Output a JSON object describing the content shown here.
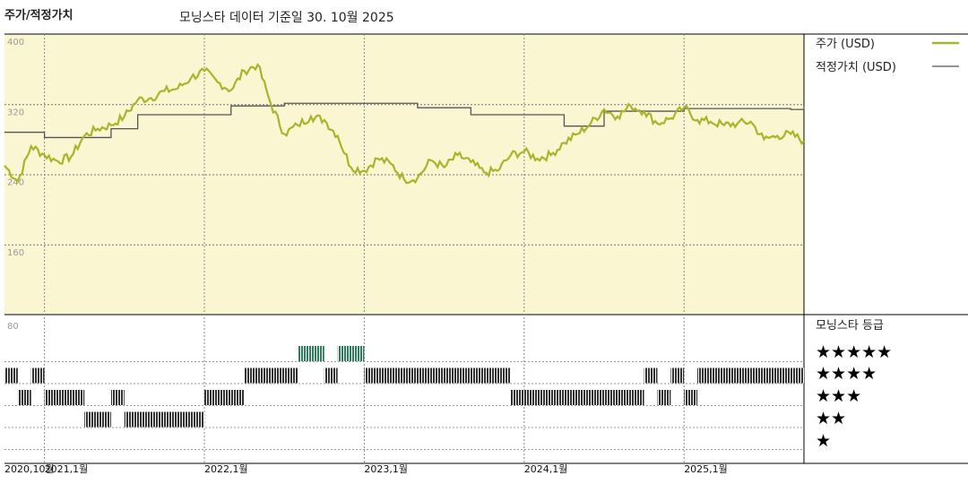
{
  "header": {
    "title": "주가/적정가치",
    "subtitle": "모닝스타 데이터 기준일 30. 10월 2025"
  },
  "legend": {
    "price_label": "주가 (USD)",
    "fair_value_label": "적정가치 (USD)",
    "rating_title": "모닝스타 등급",
    "stars": [
      "★★★★★",
      "★★★★",
      "★★★",
      "★★",
      "★"
    ]
  },
  "colors": {
    "price_line": "#a8b52a",
    "fair_value_line": "#555555",
    "upper_panel_bg": "#faf6d2",
    "rating_bar": "#333333",
    "rating_bar_five": "#2e7d5b"
  },
  "chart_data": [
    {
      "type": "line",
      "title": "주가/적정가치",
      "ylim": [
        80,
        400
      ],
      "yticks": [
        400,
        320,
        240,
        160
      ],
      "x_ticks": [
        "2020,10월",
        "2021,1월",
        "2022,1월",
        "2023,1월",
        "2024,1월",
        "2025,1월"
      ],
      "x_range": [
        "2020-10",
        "2025-10"
      ],
      "series": [
        {
          "name": "주가 (USD)",
          "points": [
            [
              "2020-10",
              250
            ],
            [
              "2020-11",
              232
            ],
            [
              "2020-12",
              272
            ],
            [
              "2021-01",
              262
            ],
            [
              "2021-02",
              255
            ],
            [
              "2021-03",
              260
            ],
            [
              "2021-04",
              284
            ],
            [
              "2021-05",
              292
            ],
            [
              "2021-06",
              296
            ],
            [
              "2021-07",
              306
            ],
            [
              "2021-08",
              325
            ],
            [
              "2021-09",
              327
            ],
            [
              "2021-10",
              335
            ],
            [
              "2021-11",
              338
            ],
            [
              "2021-12",
              350
            ],
            [
              "2022-01",
              358
            ],
            [
              "2022-02",
              345
            ],
            [
              "2022-03",
              336
            ],
            [
              "2022-04",
              358
            ],
            [
              "2022-05",
              365
            ],
            [
              "2022-06",
              320
            ],
            [
              "2022-07",
              286
            ],
            [
              "2022-08",
              296
            ],
            [
              "2022-09",
              306
            ],
            [
              "2022-10",
              302
            ],
            [
              "2022-11",
              284
            ],
            [
              "2022-12",
              248
            ],
            [
              "2023-01",
              244
            ],
            [
              "2023-02",
              258
            ],
            [
              "2023-03",
              252
            ],
            [
              "2023-04",
              234
            ],
            [
              "2023-05",
              236
            ],
            [
              "2023-06",
              256
            ],
            [
              "2023-07",
              248
            ],
            [
              "2023-08",
              262
            ],
            [
              "2023-09",
              254
            ],
            [
              "2023-10",
              242
            ],
            [
              "2023-11",
              244
            ],
            [
              "2023-12",
              262
            ],
            [
              "2024-01",
              266
            ],
            [
              "2024-02",
              258
            ],
            [
              "2024-03",
              262
            ],
            [
              "2024-04",
              276
            ],
            [
              "2024-05",
              286
            ],
            [
              "2024-06",
              298
            ],
            [
              "2024-07",
              314
            ],
            [
              "2024-08",
              306
            ],
            [
              "2024-09",
              318
            ],
            [
              "2024-10",
              312
            ],
            [
              "2024-11",
              298
            ],
            [
              "2024-12",
              304
            ],
            [
              "2025-01",
              316
            ],
            [
              "2025-02",
              302
            ],
            [
              "2025-03",
              300
            ],
            [
              "2025-04",
              296
            ],
            [
              "2025-05",
              298
            ],
            [
              "2025-06",
              300
            ],
            [
              "2025-07",
              280
            ],
            [
              "2025-08",
              284
            ],
            [
              "2025-09",
              286
            ],
            [
              "2025-10",
              278
            ]
          ]
        },
        {
          "name": "적정가치 (USD)",
          "steps": [
            [
              "2020-10",
              288
            ],
            [
              "2021-01",
              282
            ],
            [
              "2021-06",
              292
            ],
            [
              "2021-08",
              308
            ],
            [
              "2022-03",
              318
            ],
            [
              "2022-07",
              321
            ],
            [
              "2023-03",
              321
            ],
            [
              "2023-05",
              316
            ],
            [
              "2023-09",
              308
            ],
            [
              "2024-04",
              295
            ],
            [
              "2024-07",
              312
            ],
            [
              "2025-01",
              315
            ],
            [
              "2025-09",
              314
            ],
            [
              "2025-10",
              318
            ]
          ]
        }
      ]
    },
    {
      "type": "table",
      "title": "모닝스타 등급",
      "rating_levels": [
        5,
        4,
        3,
        2,
        1
      ],
      "ymax_label": "80",
      "periods": [
        {
          "rating": 4,
          "start": "2020-10",
          "end": "2020-11"
        },
        {
          "rating": 3,
          "start": "2020-11",
          "end": "2020-12"
        },
        {
          "rating": 4,
          "start": "2020-12",
          "end": "2021-01"
        },
        {
          "rating": 3,
          "start": "2021-01",
          "end": "2021-04"
        },
        {
          "rating": 2,
          "start": "2021-04",
          "end": "2021-06"
        },
        {
          "rating": 3,
          "start": "2021-06",
          "end": "2021-07"
        },
        {
          "rating": 2,
          "start": "2021-07",
          "end": "2022-01"
        },
        {
          "rating": 3,
          "start": "2022-01",
          "end": "2022-04"
        },
        {
          "rating": 4,
          "start": "2022-04",
          "end": "2022-08"
        },
        {
          "rating": 5,
          "start": "2022-08",
          "end": "2022-10"
        },
        {
          "rating": 4,
          "start": "2022-10",
          "end": "2022-11"
        },
        {
          "rating": 5,
          "start": "2022-11",
          "end": "2023-01"
        },
        {
          "rating": 4,
          "start": "2023-01",
          "end": "2023-12"
        },
        {
          "rating": 3,
          "start": "2023-12",
          "end": "2024-10"
        },
        {
          "rating": 4,
          "start": "2024-10",
          "end": "2024-11"
        },
        {
          "rating": 3,
          "start": "2024-11",
          "end": "2024-12"
        },
        {
          "rating": 4,
          "start": "2024-12",
          "end": "2025-01"
        },
        {
          "rating": 3,
          "start": "2025-01",
          "end": "2025-02"
        },
        {
          "rating": 4,
          "start": "2025-02",
          "end": "2025-10"
        }
      ]
    }
  ]
}
